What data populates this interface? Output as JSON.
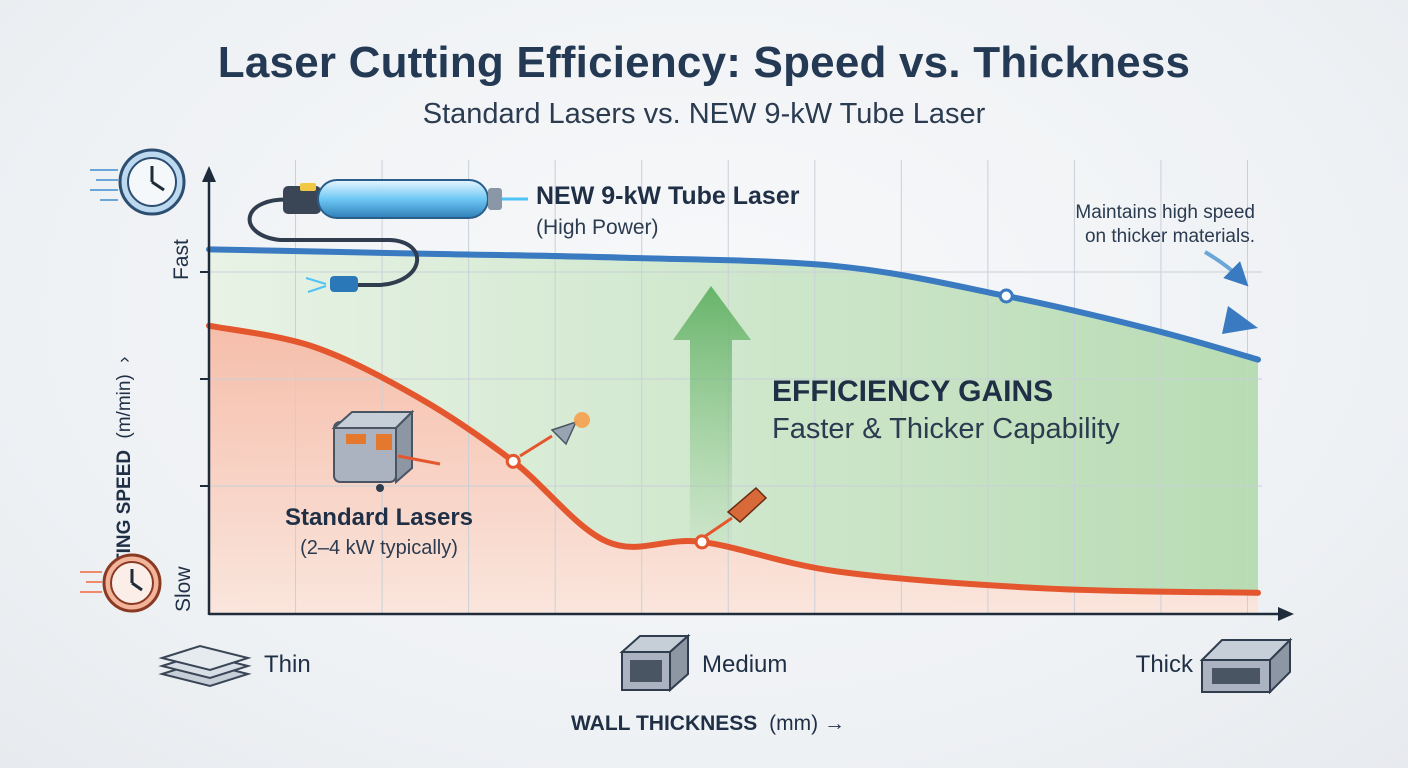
{
  "header": {
    "title": "Laser Cutting Efficiency: Speed vs. Thickness",
    "subtitle": "Standard Lasers vs. NEW 9-kW Tube Laser"
  },
  "axes": {
    "y_label": "CUTTING SPEED",
    "y_unit": "(m/min)",
    "y_arrow": "›",
    "y_high": "Fast",
    "y_low": "Slow",
    "x_label": "WALL THICKNESS",
    "x_unit": "(mm) →",
    "x_ticks": [
      "Thin",
      "Medium",
      "Thick"
    ]
  },
  "annotations": {
    "new_laser_title": "NEW 9-kW Tube Laser",
    "new_laser_sub": "(High Power)",
    "standard_title": "Standard Lasers",
    "standard_sub": "(2–4 kW typically)",
    "maintains_line1": "Maintains high speed",
    "maintains_line2": "on thicker materials.",
    "gains_title": "EFFICIENCY GAINS",
    "gains_sub": "Faster & Thicker Capability"
  },
  "colors": {
    "new_laser": "#3a7ac0",
    "standard": "#e4572e",
    "gain_area": "#bfe0bd",
    "axis": "#1e2b3a"
  },
  "chart_data": {
    "type": "line",
    "xlim": [
      0,
      1
    ],
    "ylim": [
      0,
      1
    ],
    "x_scale": "qualitative (Thin → Medium → Thick)",
    "y_scale": "qualitative (Slow → Fast)",
    "grid": true,
    "series": [
      {
        "name": "NEW 9-kW Tube Laser",
        "x": [
          0.0,
          0.2,
          0.4,
          0.6,
          0.76,
          0.9,
          1.0
        ],
        "y": [
          0.86,
          0.85,
          0.84,
          0.82,
          0.75,
          0.67,
          0.6
        ],
        "markers": [
          0.76
        ]
      },
      {
        "name": "Standard Lasers",
        "x": [
          0.0,
          0.1,
          0.2,
          0.29,
          0.38,
          0.47,
          0.6,
          0.8,
          1.0
        ],
        "y": [
          0.68,
          0.63,
          0.51,
          0.36,
          0.17,
          0.17,
          0.1,
          0.06,
          0.05
        ],
        "markers": [
          0.29,
          0.47
        ]
      }
    ]
  }
}
